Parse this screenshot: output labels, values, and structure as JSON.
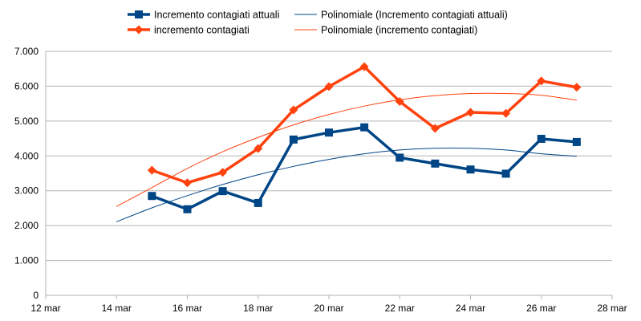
{
  "chart_data": {
    "type": "line",
    "title": "",
    "xlabel": "",
    "ylabel": "",
    "x_ticks": [
      "12 mar",
      "14 mar",
      "16 mar",
      "18 mar",
      "20 mar",
      "22 mar",
      "24 mar",
      "26 mar",
      "28 mar"
    ],
    "y_ticks": [
      "0",
      "1.000",
      "2.000",
      "3.000",
      "4.000",
      "5.000",
      "6.000",
      "7.000"
    ],
    "xlim": [
      "12 mar",
      "28 mar"
    ],
    "ylim": [
      0,
      7000
    ],
    "grid": "horizontal",
    "legend_position": "top",
    "categories": [
      "15 mar",
      "16 mar",
      "17 mar",
      "18 mar",
      "19 mar",
      "20 mar",
      "21 mar",
      "22 mar",
      "23 mar",
      "24 mar",
      "25 mar",
      "26 mar",
      "27 mar"
    ],
    "series": [
      {
        "name": "Incremento contagiati attuali",
        "color": "#004586",
        "marker": "square",
        "values": [
          2850,
          2470,
          2990,
          2650,
          4470,
          4670,
          4820,
          3950,
          3780,
          3610,
          3490,
          4490,
          4400
        ]
      },
      {
        "name": "incremento contagiati",
        "color": "#ff420e",
        "marker": "diamond",
        "values": [
          3590,
          3230,
          3530,
          4210,
          5320,
          5990,
          6560,
          5560,
          4790,
          5250,
          5220,
          6150,
          5970
        ]
      }
    ],
    "trendlines": [
      {
        "name": "Polinomiale (Incremento contagiati attuali)",
        "color": "#004586",
        "x_start": "14 mar",
        "x_end": "27 mar",
        "values": [
          2110,
          2510,
          2860,
          3180,
          3460,
          3700,
          3900,
          4060,
          4170,
          4220,
          4220,
          4170,
          4060,
          3990
        ]
      },
      {
        "name": "Polinomiale (incremento contagiati)",
        "color": "#ff420e",
        "x_start": "14 mar",
        "x_end": "27 mar",
        "values": [
          2550,
          3090,
          3640,
          4120,
          4530,
          4890,
          5190,
          5430,
          5610,
          5730,
          5790,
          5790,
          5740,
          5600
        ]
      }
    ]
  }
}
